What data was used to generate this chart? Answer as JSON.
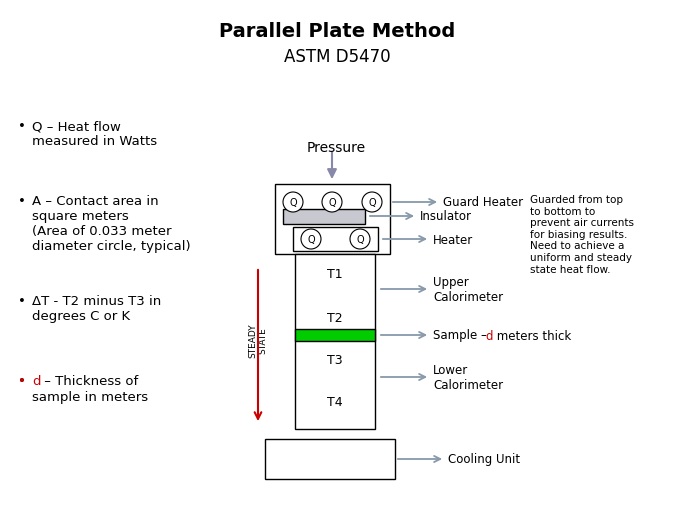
{
  "title_line1": "Parallel Plate Method",
  "title_line2": "ASTM D5470",
  "bg_color": "#ffffff",
  "green_color": "#00cc00",
  "red_color": "#cc0000",
  "arr_color": "#8899aa",
  "guard_gray": "#c8c8d0",
  "note_text": "Guarded from top\nto bottom to\nprevent air currents\nfor biasing results.\nNeed to achieve a\nuniform and steady\nstate heat flow."
}
